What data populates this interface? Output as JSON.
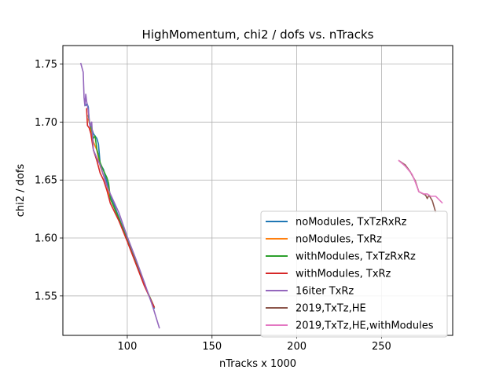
{
  "chart_data": {
    "type": "line",
    "title": "HighMomentum, chi2 / dofs vs. nTracks",
    "xlabel": "nTracks x 1000",
    "ylabel": "chi2 / dofs",
    "xlim": [
      62,
      292
    ],
    "ylim": [
      1.516,
      1.766
    ],
    "xticks": [
      100,
      150,
      200,
      250
    ],
    "yticks": [
      1.55,
      1.6,
      1.65,
      1.7,
      1.75
    ],
    "xtick_labels": [
      "100",
      "150",
      "200",
      "250"
    ],
    "ytick_labels": [
      "1.55",
      "1.60",
      "1.65",
      "1.70",
      "1.75"
    ],
    "grid": true,
    "legend_position": "lower-right",
    "series": [
      {
        "name": "noModules, TxTzRxRz",
        "color": "#1f77b4",
        "points": [
          [
            75.5,
            1.714
          ],
          [
            76.2,
            1.716
          ],
          [
            77,
            1.713
          ],
          [
            77.5,
            1.7
          ],
          [
            78.5,
            1.697
          ],
          [
            80,
            1.69
          ],
          [
            82,
            1.686
          ],
          [
            83,
            1.681
          ],
          [
            84,
            1.664
          ],
          [
            86,
            1.659
          ],
          [
            88,
            1.648
          ],
          [
            90,
            1.637
          ],
          [
            95,
            1.618
          ],
          [
            100,
            1.599
          ],
          [
            105,
            1.58
          ],
          [
            110,
            1.56
          ],
          [
            116,
            1.539
          ]
        ]
      },
      {
        "name": "noModules, TxRz",
        "color": "#ff7f0e",
        "points": [
          [
            77,
            1.703
          ],
          [
            78,
            1.697
          ],
          [
            79,
            1.69
          ],
          [
            80,
            1.683
          ],
          [
            82,
            1.676
          ],
          [
            84,
            1.662
          ],
          [
            86,
            1.654
          ],
          [
            88,
            1.645
          ],
          [
            90,
            1.634
          ],
          [
            95,
            1.617
          ],
          [
            100,
            1.598
          ],
          [
            105,
            1.579
          ],
          [
            110,
            1.56
          ],
          [
            116,
            1.54
          ]
        ]
      },
      {
        "name": "withModules, TxTzRxRz",
        "color": "#2ca02c",
        "points": [
          [
            77,
            1.706
          ],
          [
            78,
            1.698
          ],
          [
            79,
            1.693
          ],
          [
            80,
            1.686
          ],
          [
            81,
            1.688
          ],
          [
            82,
            1.677
          ],
          [
            84,
            1.665
          ],
          [
            86,
            1.658
          ],
          [
            88,
            1.652
          ],
          [
            89,
            1.647
          ],
          [
            90,
            1.634
          ],
          [
            95,
            1.617
          ],
          [
            100,
            1.598
          ],
          [
            105,
            1.579
          ],
          [
            110,
            1.56
          ],
          [
            116,
            1.54
          ]
        ]
      },
      {
        "name": "withModules, TxRz",
        "color": "#d62728",
        "points": [
          [
            76,
            1.712
          ],
          [
            76.5,
            1.697
          ],
          [
            77.5,
            1.695
          ],
          [
            78.5,
            1.69
          ],
          [
            80,
            1.676
          ],
          [
            82,
            1.667
          ],
          [
            84,
            1.656
          ],
          [
            86,
            1.65
          ],
          [
            88,
            1.641
          ],
          [
            90,
            1.63
          ],
          [
            95,
            1.615
          ],
          [
            100,
            1.597
          ],
          [
            105,
            1.578
          ],
          [
            110,
            1.559
          ],
          [
            116,
            1.54
          ]
        ]
      },
      {
        "name": "16iter TxRz",
        "color": "#9467bd",
        "points": [
          [
            72.5,
            1.751
          ],
          [
            74,
            1.743
          ],
          [
            74.5,
            1.721
          ],
          [
            75,
            1.714
          ],
          [
            75.5,
            1.724
          ],
          [
            76,
            1.718
          ],
          [
            76.5,
            1.714
          ],
          [
            77,
            1.71
          ],
          [
            78,
            1.696
          ],
          [
            79,
            1.7
          ],
          [
            80,
            1.676
          ],
          [
            82,
            1.669
          ],
          [
            84,
            1.663
          ],
          [
            86,
            1.654
          ],
          [
            88,
            1.645
          ],
          [
            90,
            1.638
          ],
          [
            95,
            1.622
          ],
          [
            100,
            1.601
          ],
          [
            105,
            1.582
          ],
          [
            110,
            1.562
          ],
          [
            115,
            1.541
          ],
          [
            119,
            1.522
          ]
        ]
      },
      {
        "name": "2019,TxTz,HE",
        "color": "#8c564b",
        "points": [
          [
            260,
            1.667
          ],
          [
            264,
            1.663
          ],
          [
            267,
            1.657
          ],
          [
            270,
            1.649
          ],
          [
            272,
            1.64
          ],
          [
            276,
            1.637
          ],
          [
            277,
            1.634
          ],
          [
            278,
            1.637
          ],
          [
            280,
            1.632
          ],
          [
            282,
            1.622
          ]
        ]
      },
      {
        "name": "2019,TxTz,HE,withModules",
        "color": "#e377c2",
        "points": [
          [
            260,
            1.667
          ],
          [
            264,
            1.662
          ],
          [
            268,
            1.655
          ],
          [
            270,
            1.648
          ],
          [
            272,
            1.64
          ],
          [
            275,
            1.638
          ],
          [
            277,
            1.638
          ],
          [
            279,
            1.636
          ],
          [
            282,
            1.636
          ],
          [
            286,
            1.63
          ]
        ]
      }
    ]
  }
}
